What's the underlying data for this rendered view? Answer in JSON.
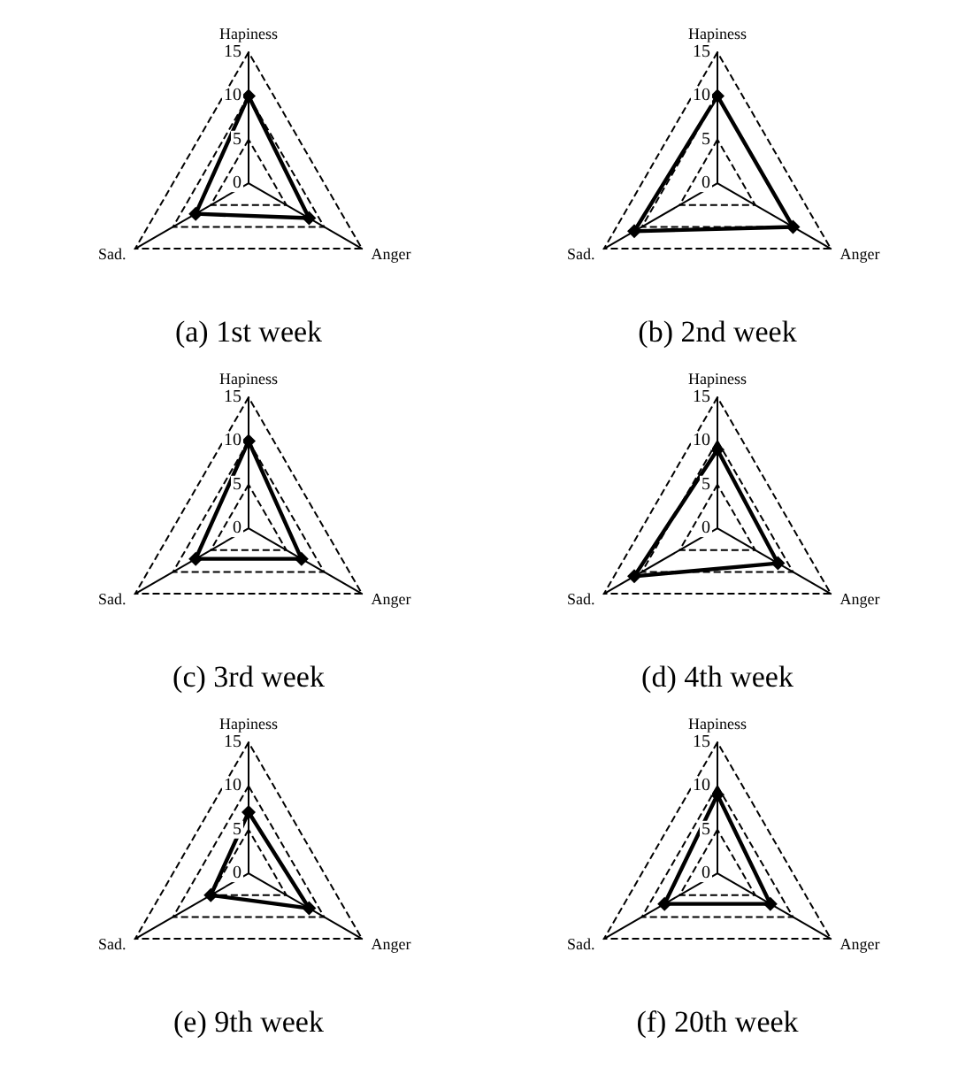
{
  "chart_data": [
    {
      "type": "radar",
      "title": "(a) 1st week",
      "categories": [
        "Hapiness",
        "Anger",
        "Sad."
      ],
      "series": [
        {
          "color": "#000000",
          "values": [
            10,
            8,
            7
          ]
        }
      ],
      "ylim": [
        0,
        15
      ],
      "yticks": [
        0,
        5,
        10,
        15
      ],
      "grid": true,
      "marker": "diamond",
      "line_style": "solid"
    },
    {
      "type": "radar",
      "title": "(b) 2nd week",
      "categories": [
        "Hapiness",
        "Anger",
        "Sad."
      ],
      "series": [
        {
          "color": "#000000",
          "values": [
            10,
            10,
            11
          ]
        }
      ],
      "ylim": [
        0,
        15
      ],
      "yticks": [
        0,
        5,
        10,
        15
      ],
      "grid": true,
      "marker": "diamond",
      "line_style": "solid"
    },
    {
      "type": "radar",
      "title": "(c) 3rd week",
      "categories": [
        "Hapiness",
        "Anger",
        "Sad."
      ],
      "series": [
        {
          "color": "#000000",
          "values": [
            10,
            7,
            7
          ]
        }
      ],
      "ylim": [
        0,
        15
      ],
      "yticks": [
        0,
        5,
        10,
        15
      ],
      "grid": true,
      "marker": "diamond",
      "line_style": "solid"
    },
    {
      "type": "radar",
      "title": "(d) 4th week",
      "categories": [
        "Hapiness",
        "Anger",
        "Sad."
      ],
      "series": [
        {
          "color": "#000000",
          "values": [
            9,
            8,
            11
          ]
        }
      ],
      "ylim": [
        0,
        15
      ],
      "yticks": [
        0,
        5,
        10,
        15
      ],
      "grid": true,
      "marker": "diamond",
      "line_style": "solid"
    },
    {
      "type": "radar",
      "title": "(e) 9th week",
      "categories": [
        "Hapiness",
        "Anger",
        "Sad."
      ],
      "series": [
        {
          "color": "#000000",
          "values": [
            7,
            8,
            5
          ]
        }
      ],
      "ylim": [
        0,
        15
      ],
      "yticks": [
        0,
        5,
        10,
        15
      ],
      "grid": true,
      "marker": "diamond",
      "line_style": "solid"
    },
    {
      "type": "radar",
      "title": "(f) 20th week",
      "categories": [
        "Hapiness",
        "Anger",
        "Sad."
      ],
      "series": [
        {
          "color": "#000000",
          "values": [
            9,
            7,
            7
          ]
        }
      ],
      "ylim": [
        0,
        15
      ],
      "yticks": [
        0,
        5,
        10,
        15
      ],
      "grid": true,
      "marker": "diamond",
      "line_style": "solid"
    }
  ]
}
